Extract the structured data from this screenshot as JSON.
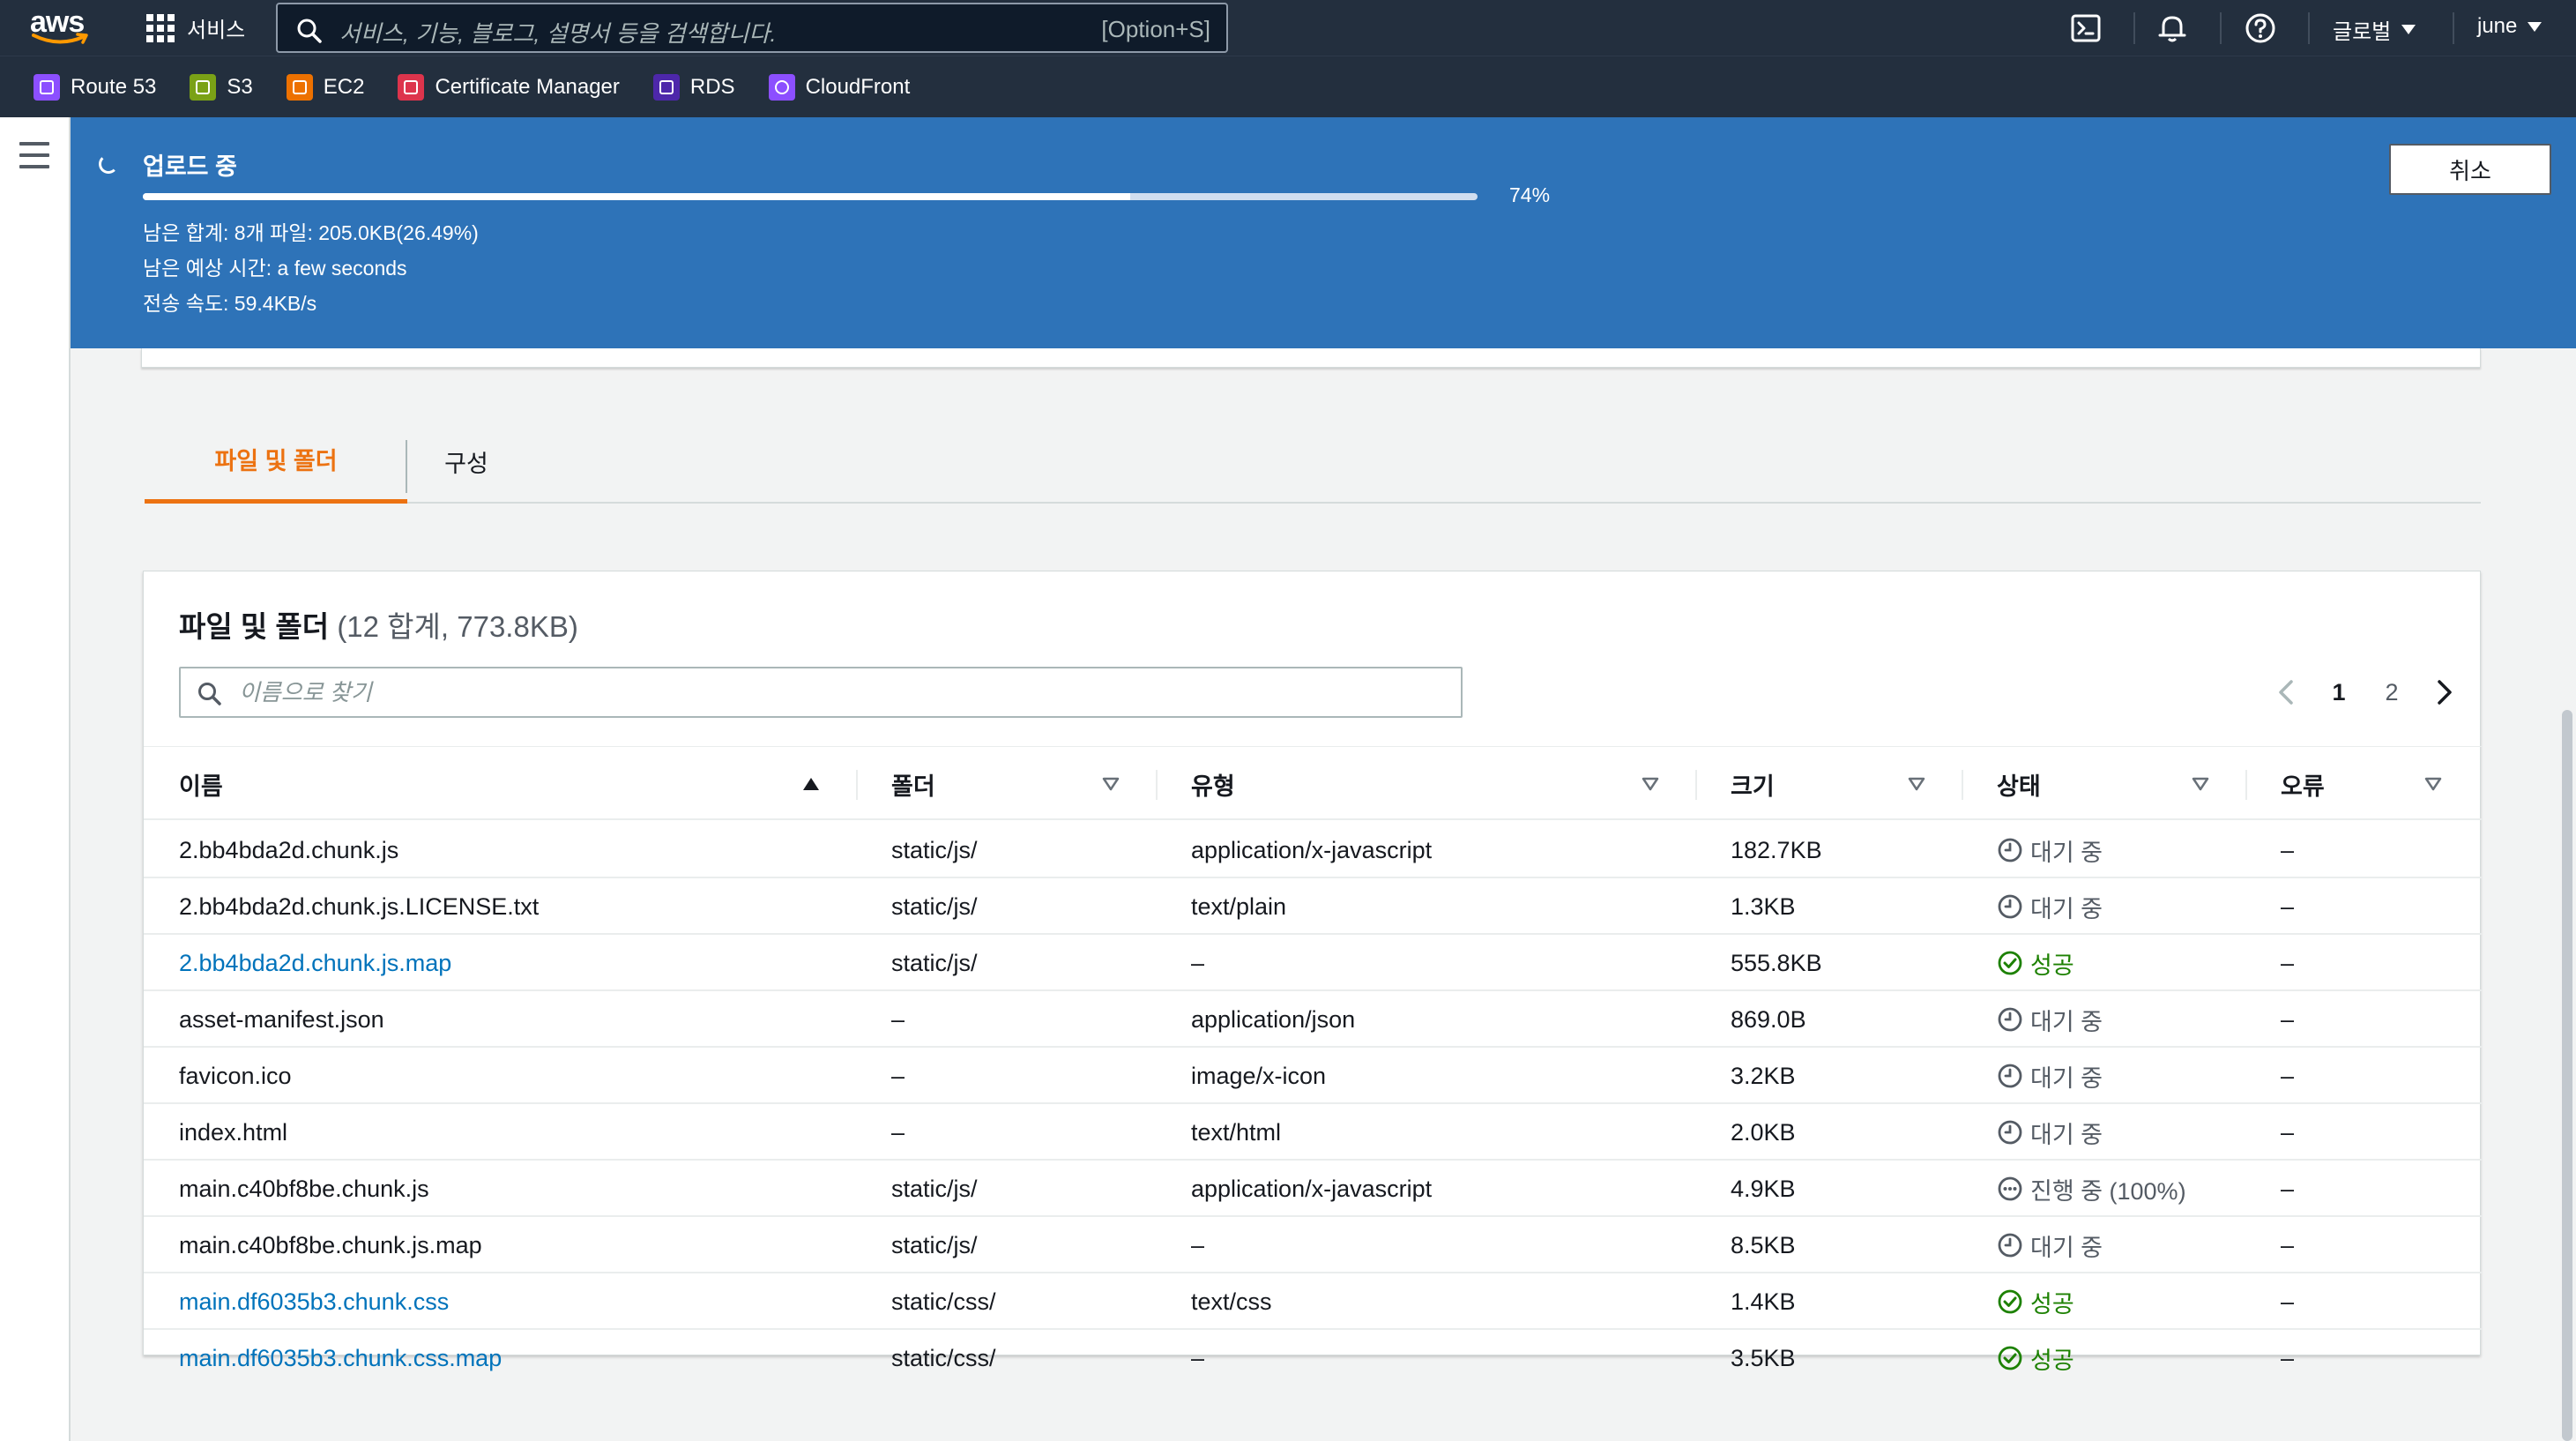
{
  "topnav": {
    "logo_text": "aws",
    "services_label": "서비스",
    "search_placeholder": "서비스, 기능, 블로그, 설명서 등을 검색합니다.",
    "search_shortcut": "[Option+S]",
    "region_label": "글로벌",
    "user_label": "june"
  },
  "favorites": [
    {
      "label": "Route 53",
      "color": "#8c4fff"
    },
    {
      "label": "S3",
      "color": "#7aa116"
    },
    {
      "label": "EC2",
      "color": "#ed7100"
    },
    {
      "label": "Certificate Manager",
      "color": "#dd344c"
    },
    {
      "label": "RDS",
      "color": "#4d27aa"
    },
    {
      "label": "CloudFront",
      "color": "#8c4fff"
    }
  ],
  "upload": {
    "title": "업로드 중",
    "progress": 74,
    "percent_label": "74%",
    "remaining_total": "남은 합계: 8개 파일: 205.0KB(26.49%)",
    "remaining_time": "남은 예상 시간: a few seconds",
    "transfer_speed": "전송 속도: 59.4KB/s",
    "cancel_label": "취소"
  },
  "tabs": [
    {
      "label": "파일 및 폴더",
      "active": true
    },
    {
      "label": "구성",
      "active": false
    }
  ],
  "files": {
    "title": "파일 및 폴더",
    "count_label": "(12 합계, 773.8KB)",
    "filter_placeholder": "이름으로 찾기",
    "pagination": {
      "pages": [
        "1",
        "2"
      ],
      "current": "1"
    },
    "columns": [
      {
        "key": "name",
        "label": "이름"
      },
      {
        "key": "folder",
        "label": "폴더"
      },
      {
        "key": "type",
        "label": "유형"
      },
      {
        "key": "size",
        "label": "크기"
      },
      {
        "key": "status",
        "label": "상태"
      },
      {
        "key": "error",
        "label": "오류"
      }
    ],
    "rows": [
      {
        "name": "2.bb4bda2d.chunk.js",
        "link": false,
        "folder": "static/js/",
        "type": "application/x-javascript",
        "size": "182.7KB",
        "status": "대기 중",
        "state": "wait",
        "error": "–"
      },
      {
        "name": "2.bb4bda2d.chunk.js.LICENSE.txt",
        "link": false,
        "folder": "static/js/",
        "type": "text/plain",
        "size": "1.3KB",
        "status": "대기 중",
        "state": "wait",
        "error": "–"
      },
      {
        "name": "2.bb4bda2d.chunk.js.map",
        "link": true,
        "folder": "static/js/",
        "type": "–",
        "size": "555.8KB",
        "status": "성공",
        "state": "ok",
        "error": "–"
      },
      {
        "name": "asset-manifest.json",
        "link": false,
        "folder": "–",
        "type": "application/json",
        "size": "869.0B",
        "status": "대기 중",
        "state": "wait",
        "error": "–"
      },
      {
        "name": "favicon.ico",
        "link": false,
        "folder": "–",
        "type": "image/x-icon",
        "size": "3.2KB",
        "status": "대기 중",
        "state": "wait",
        "error": "–"
      },
      {
        "name": "index.html",
        "link": false,
        "folder": "–",
        "type": "text/html",
        "size": "2.0KB",
        "status": "대기 중",
        "state": "wait",
        "error": "–"
      },
      {
        "name": "main.c40bf8be.chunk.js",
        "link": false,
        "folder": "static/js/",
        "type": "application/x-javascript",
        "size": "4.9KB",
        "status": "진행 중 (100%)",
        "state": "prog",
        "error": "–"
      },
      {
        "name": "main.c40bf8be.chunk.js.map",
        "link": false,
        "folder": "static/js/",
        "type": "–",
        "size": "8.5KB",
        "status": "대기 중",
        "state": "wait",
        "error": "–"
      },
      {
        "name": "main.df6035b3.chunk.css",
        "link": true,
        "folder": "static/css/",
        "type": "text/css",
        "size": "1.4KB",
        "status": "성공",
        "state": "ok",
        "error": "–"
      },
      {
        "name": "main.df6035b3.chunk.css.map",
        "link": true,
        "folder": "static/css/",
        "type": "–",
        "size": "3.5KB",
        "status": "성공",
        "state": "ok",
        "error": "–"
      }
    ]
  }
}
